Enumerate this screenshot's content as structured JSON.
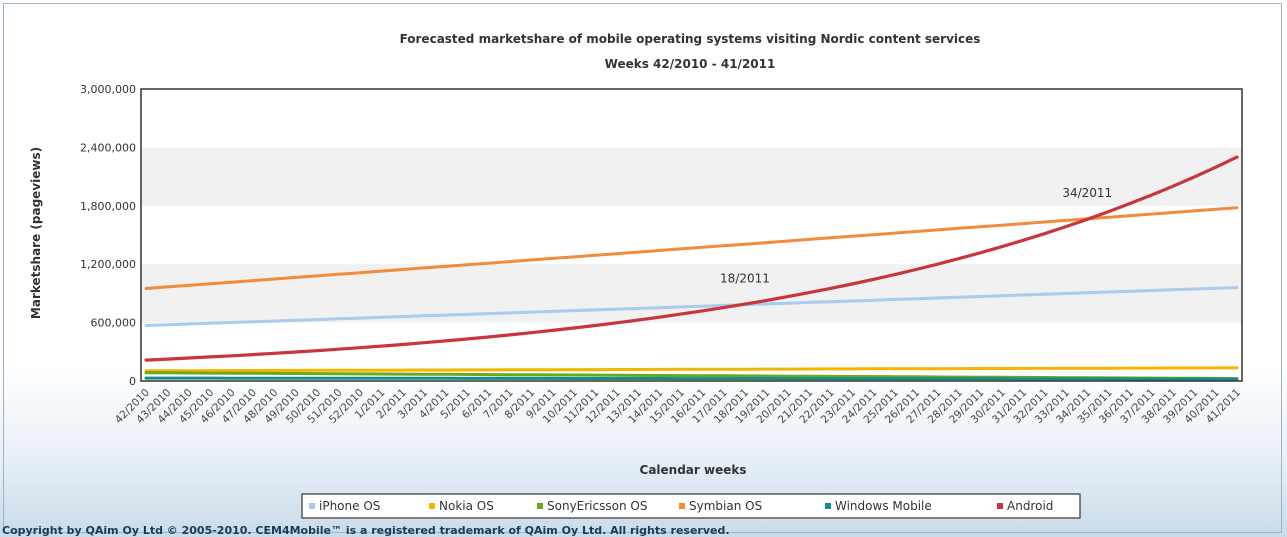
{
  "chart_data": {
    "type": "line",
    "title": "Forecasted marketshare of mobile operating systems visiting Nordic content services",
    "subtitle": "Weeks 42/2010 - 41/2011",
    "xlabel": "Calendar weeks",
    "ylabel": "Marketshare (pageviews)",
    "ylim": [
      0,
      3000000
    ],
    "yticks": [
      0,
      600000,
      1200000,
      1800000,
      2400000,
      3000000
    ],
    "ytick_labels": [
      "0",
      "600,000",
      "1,200,000",
      "1,800,000",
      "2,400,000",
      "3,000,000"
    ],
    "x": [
      "42/2010",
      "43/2010",
      "44/2010",
      "45/2010",
      "46/2010",
      "47/2010",
      "48/2010",
      "49/2010",
      "50/2010",
      "51/2010",
      "52/2010",
      "1/2011",
      "2/2011",
      "3/2011",
      "4/2011",
      "5/2011",
      "6/2011",
      "7/2011",
      "8/2011",
      "9/2011",
      "10/2011",
      "11/2011",
      "12/2011",
      "13/2011",
      "14/2011",
      "15/2011",
      "16/2011",
      "17/2011",
      "18/2011",
      "19/2011",
      "20/2011",
      "21/2011",
      "22/2011",
      "23/2011",
      "24/2011",
      "25/2011",
      "26/2011",
      "27/2011",
      "28/2011",
      "29/2011",
      "30/2011",
      "31/2011",
      "32/2011",
      "33/2011",
      "34/2011",
      "35/2011",
      "36/2011",
      "37/2011",
      "38/2011",
      "39/2011",
      "40/2011",
      "41/2011"
    ],
    "grid": "alternating horizontal bands",
    "legend_position": "bottom",
    "series": [
      {
        "name": "iPhone OS",
        "color": "#a8cbee",
        "start": 570000,
        "end": 960000,
        "growth": "linear"
      },
      {
        "name": "Nokia OS",
        "color": "#f4b400",
        "start": 105000,
        "end": 135000,
        "growth": "linear"
      },
      {
        "name": "SonyEricsson OS",
        "color": "#6aa81c",
        "start": 85000,
        "end": 25000,
        "growth": "linear"
      },
      {
        "name": "Symbian OS",
        "color": "#f28c3c",
        "start": 950000,
        "end": 1780000,
        "growth": "linear"
      },
      {
        "name": "Windows Mobile",
        "color": "#1a8a8a",
        "start": 30000,
        "end": 20000,
        "growth": "linear"
      },
      {
        "name": "Android",
        "color": "#c8363c",
        "start": 215000,
        "end": 2300000,
        "growth": "exponential"
      }
    ],
    "annotations": [
      {
        "text": "18/2011"
      },
      {
        "text": "34/2011"
      }
    ]
  },
  "footer": {
    "copyright": "Copyright by QAim Oy Ltd © 2005-2010. CEM4Mobile™ is a registered trademark of QAim Oy Ltd. All rights reserved."
  }
}
